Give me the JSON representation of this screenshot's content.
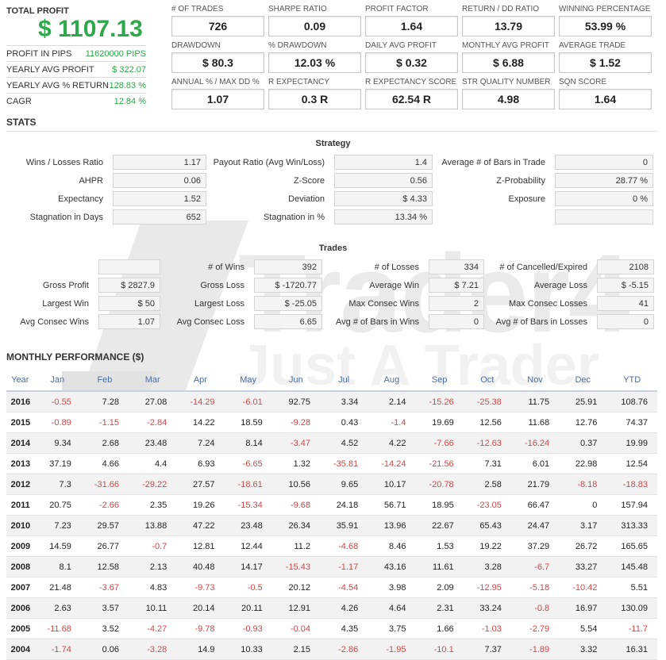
{
  "colors": {
    "positive": "#2ea84a",
    "negative": "#d64545",
    "header_blue": "#4a6e9e"
  },
  "summary": {
    "total_profit_label": "TOTAL PROFIT",
    "total_profit_value": "$ 1107.13",
    "items": [
      {
        "label": "PROFIT IN PIPS",
        "value": "11620000 PIPS"
      },
      {
        "label": "YEARLY AVG PROFIT",
        "value": "$ 322.07"
      },
      {
        "label": "YEARLY AVG % RETURN",
        "value": "128.83 %"
      },
      {
        "label": "CAGR",
        "value": "12.84 %"
      }
    ]
  },
  "metrics": [
    {
      "label": "# OF TRADES",
      "value": "726"
    },
    {
      "label": "SHARPE RATIO",
      "value": "0.09"
    },
    {
      "label": "PROFIT FACTOR",
      "value": "1.64"
    },
    {
      "label": "RETURN / DD RATIO",
      "value": "13.79"
    },
    {
      "label": "WINNING PERCENTAGE",
      "value": "53.99 %"
    },
    {
      "label": "DRAWDOWN",
      "value": "$ 80.3"
    },
    {
      "label": "% DRAWDOWN",
      "value": "12.03 %"
    },
    {
      "label": "DAILY AVG PROFIT",
      "value": "$ 0.32"
    },
    {
      "label": "MONTHLY AVG PROFIT",
      "value": "$ 6.88"
    },
    {
      "label": "AVERAGE TRADE",
      "value": "$ 1.52"
    },
    {
      "label": "ANNUAL % / MAX DD %",
      "value": "1.07"
    },
    {
      "label": "R EXPECTANCY",
      "value": "0.3 R"
    },
    {
      "label": "R EXPECTANCY SCORE",
      "value": "62.54 R"
    },
    {
      "label": "STR QUALITY NUMBER",
      "value": "4.98"
    },
    {
      "label": "SQN SCORE",
      "value": "1.64"
    }
  ],
  "stats_title": "STATS",
  "strategy": {
    "title": "Strategy",
    "rows": [
      [
        {
          "label": "Wins / Losses Ratio",
          "value": "1.17"
        },
        {
          "label": "Payout Ratio (Avg Win/Loss)",
          "value": "1.4"
        },
        {
          "label": "Average # of Bars in Trade",
          "value": "0"
        }
      ],
      [
        {
          "label": "AHPR",
          "value": "0.06"
        },
        {
          "label": "Z-Score",
          "value": "0.56"
        },
        {
          "label": "Z-Probability",
          "value": "28.77 %"
        }
      ],
      [
        {
          "label": "Expectancy",
          "value": "1.52"
        },
        {
          "label": "Deviation",
          "value": "$ 4.33"
        },
        {
          "label": "Exposure",
          "value": "0 %"
        }
      ],
      [
        {
          "label": "Stagnation in Days",
          "value": "652"
        },
        {
          "label": "Stagnation in %",
          "value": "13.34 %"
        },
        {
          "label": "",
          "value": ""
        }
      ]
    ]
  },
  "trades": {
    "title": "Trades",
    "rows": [
      [
        {
          "label": "",
          "value": ""
        },
        {
          "label": "# of Wins",
          "value": "392"
        },
        {
          "label": "# of Losses",
          "value": "334"
        },
        {
          "label": "# of Cancelled/Expired",
          "value": "2108"
        }
      ],
      [
        {
          "label": "Gross Profit",
          "value": "$ 2827.9"
        },
        {
          "label": "Gross Loss",
          "value": "$ -1720.77"
        },
        {
          "label": "Average Win",
          "value": "$ 7.21"
        },
        {
          "label": "Average Loss",
          "value": "$ -5.15"
        }
      ],
      [
        {
          "label": "Largest Win",
          "value": "$ 50"
        },
        {
          "label": "Largest Loss",
          "value": "$ -25.05"
        },
        {
          "label": "Max Consec Wins",
          "value": "2"
        },
        {
          "label": "Max Consec Losses",
          "value": "41"
        }
      ],
      [
        {
          "label": "Avg Consec Wins",
          "value": "1.07"
        },
        {
          "label": "Avg Consec Loss",
          "value": "6.65"
        },
        {
          "label": "Avg # of Bars in Wins",
          "value": "0"
        },
        {
          "label": "Avg # of Bars in Losses",
          "value": "0"
        }
      ]
    ]
  },
  "watermark": {
    "line1": "Trader4",
    "line2": "Just A Trader"
  },
  "monthly": {
    "title": "MONTHLY PERFORMANCE ($)",
    "headers": [
      "Year",
      "Jan",
      "Feb",
      "Mar",
      "Apr",
      "May",
      "Jun",
      "Jul",
      "Aug",
      "Sep",
      "Oct",
      "Nov",
      "Dec",
      "YTD"
    ],
    "rows": [
      [
        "2016",
        "-0.55",
        "7.28",
        "27.08",
        "-14.29",
        "-6.01",
        "92.75",
        "3.34",
        "2.14",
        "-15.26",
        "-25.38",
        "11.75",
        "25.91",
        "108.76"
      ],
      [
        "2015",
        "-0.89",
        "-1.15",
        "-2.84",
        "14.22",
        "18.59",
        "-9.28",
        "0.43",
        "-1.4",
        "19.69",
        "12.56",
        "11.68",
        "12.76",
        "74.37"
      ],
      [
        "2014",
        "9.34",
        "2.68",
        "23.48",
        "7.24",
        "8.14",
        "-3.47",
        "4.52",
        "4.22",
        "-7.66",
        "-12.63",
        "-16.24",
        "0.37",
        "19.99"
      ],
      [
        "2013",
        "37.19",
        "4.66",
        "4.4",
        "6.93",
        "-6.65",
        "1.32",
        "-35.81",
        "-14.24",
        "-21.56",
        "7.31",
        "6.01",
        "22.98",
        "12.54"
      ],
      [
        "2012",
        "7.3",
        "-31.66",
        "-29.22",
        "27.57",
        "-18.61",
        "10.56",
        "9.65",
        "10.17",
        "-20.78",
        "2.58",
        "21.79",
        "-8.18",
        "-18.83"
      ],
      [
        "2011",
        "20.75",
        "-2.66",
        "2.35",
        "19.26",
        "-15.34",
        "-9.68",
        "24.18",
        "56.71",
        "18.95",
        "-23.05",
        "66.47",
        "0",
        "157.94"
      ],
      [
        "2010",
        "7.23",
        "29.57",
        "13.88",
        "47.22",
        "23.48",
        "26.34",
        "35.91",
        "13.96",
        "22.67",
        "65.43",
        "24.47",
        "3.17",
        "313.33"
      ],
      [
        "2009",
        "14.59",
        "26.77",
        "-0.7",
        "12.81",
        "12.44",
        "11.2",
        "-4.68",
        "8.46",
        "1.53",
        "19.22",
        "37.29",
        "26.72",
        "165.65"
      ],
      [
        "2008",
        "8.1",
        "12.58",
        "2.13",
        "40.48",
        "14.17",
        "-15.43",
        "-1.17",
        "43.16",
        "11.61",
        "3.28",
        "-6.7",
        "33.27",
        "145.48"
      ],
      [
        "2007",
        "21.48",
        "-3.67",
        "4.83",
        "-9.73",
        "-0.5",
        "20.12",
        "-4.54",
        "3.98",
        "2.09",
        "-12.95",
        "-5.18",
        "-10.42",
        "5.51"
      ],
      [
        "2006",
        "2.63",
        "3.57",
        "10.11",
        "20.14",
        "20.11",
        "12.91",
        "4.26",
        "4.64",
        "2.31",
        "33.24",
        "-0.8",
        "16.97",
        "130.09"
      ],
      [
        "2005",
        "-11.68",
        "3.52",
        "-4.27",
        "-9.78",
        "-0.93",
        "-0.04",
        "4.35",
        "3.75",
        "1.66",
        "-1.03",
        "-2.79",
        "5.54",
        "-11.7"
      ],
      [
        "2004",
        "-1.74",
        "0.06",
        "-3.28",
        "14.9",
        "10.33",
        "2.15",
        "-2.86",
        "-1.95",
        "-10.1",
        "7.37",
        "-1.89",
        "3.32",
        "16.31"
      ]
    ]
  }
}
